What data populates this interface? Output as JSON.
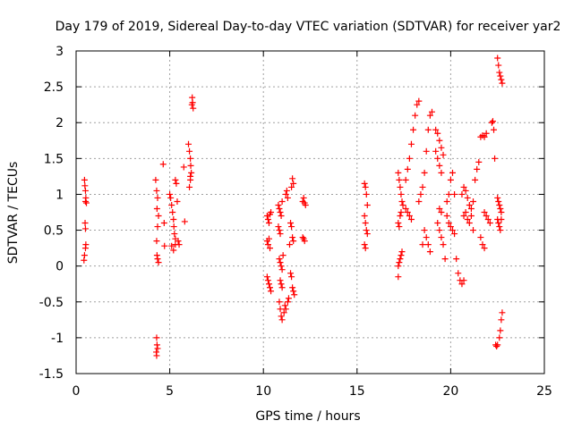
{
  "chart_data": {
    "type": "scatter",
    "title": "Day 179 of 2019, Sidereal Day-to-day VTEC variation (SDTVAR) for receiver yar2",
    "xlabel": "GPS time / hours",
    "ylabel": "SDTVAR / TECUs",
    "xlim": [
      0,
      25
    ],
    "ylim": [
      -1.5,
      3
    ],
    "grid": true,
    "marker": "+",
    "color": "#ff0000",
    "x_ticks": [
      {
        "value": 0,
        "label": "0"
      },
      {
        "value": 5,
        "label": "5"
      },
      {
        "value": 10,
        "label": "10"
      },
      {
        "value": 15,
        "label": "15"
      },
      {
        "value": 20,
        "label": "20"
      },
      {
        "value": 25,
        "label": "25"
      }
    ],
    "y_ticks": [
      {
        "value": -1.5,
        "label": "-1.5"
      },
      {
        "value": -1,
        "label": "-1"
      },
      {
        "value": -0.5,
        "label": "-0.5"
      },
      {
        "value": 0,
        "label": "0"
      },
      {
        "value": 0.5,
        "label": "0.5"
      },
      {
        "value": 1,
        "label": "1"
      },
      {
        "value": 1.5,
        "label": "1.5"
      },
      {
        "value": 2,
        "label": "2"
      },
      {
        "value": 2.5,
        "label": "2.5"
      },
      {
        "value": 3,
        "label": "3"
      }
    ],
    "series": [
      {
        "name": "SDTVAR",
        "points": [
          [
            0.45,
            1.2
          ],
          [
            0.47,
            1.12
          ],
          [
            0.5,
            1.05
          ],
          [
            0.52,
            0.95
          ],
          [
            0.55,
            0.88
          ],
          [
            0.48,
            0.6
          ],
          [
            0.5,
            0.52
          ],
          [
            0.52,
            0.3
          ],
          [
            0.5,
            0.25
          ],
          [
            0.45,
            0.15
          ],
          [
            0.42,
            0.08
          ],
          [
            0.5,
            0.9
          ],
          [
            4.25,
            1.2
          ],
          [
            4.3,
            1.05
          ],
          [
            4.35,
            0.95
          ],
          [
            4.32,
            0.8
          ],
          [
            4.4,
            0.7
          ],
          [
            4.35,
            0.55
          ],
          [
            4.3,
            0.35
          ],
          [
            4.32,
            0.15
          ],
          [
            4.35,
            0.1
          ],
          [
            4.4,
            0.05
          ],
          [
            4.3,
            -1.0
          ],
          [
            4.32,
            -1.1
          ],
          [
            4.35,
            -1.15
          ],
          [
            4.3,
            -1.25
          ],
          [
            4.28,
            -1.2
          ],
          [
            4.65,
            1.42
          ],
          [
            4.7,
            0.6
          ],
          [
            4.72,
            0.28
          ],
          [
            5.0,
            1.0
          ],
          [
            5.05,
            0.95
          ],
          [
            5.1,
            0.85
          ],
          [
            5.15,
            0.75
          ],
          [
            5.2,
            0.65
          ],
          [
            5.22,
            0.55
          ],
          [
            5.25,
            0.45
          ],
          [
            5.3,
            0.38
          ],
          [
            5.1,
            0.28
          ],
          [
            5.2,
            0.22
          ],
          [
            5.3,
            1.2
          ],
          [
            5.35,
            1.15
          ],
          [
            5.4,
            0.9
          ],
          [
            5.45,
            0.35
          ],
          [
            5.5,
            0.3
          ],
          [
            5.3,
            0.3
          ],
          [
            5.75,
            1.38
          ],
          [
            5.8,
            0.62
          ],
          [
            6.0,
            1.7
          ],
          [
            6.05,
            1.6
          ],
          [
            6.1,
            1.5
          ],
          [
            6.12,
            1.4
          ],
          [
            6.15,
            1.3
          ],
          [
            6.1,
            1.2
          ],
          [
            6.2,
            2.35
          ],
          [
            6.22,
            2.28
          ],
          [
            6.25,
            2.2
          ],
          [
            6.18,
            2.25
          ],
          [
            6.05,
            1.1
          ],
          [
            6.1,
            1.25
          ],
          [
            10.2,
            0.7
          ],
          [
            10.25,
            0.65
          ],
          [
            10.3,
            0.6
          ],
          [
            10.35,
            0.72
          ],
          [
            10.4,
            0.75
          ],
          [
            10.2,
            0.35
          ],
          [
            10.25,
            0.3
          ],
          [
            10.3,
            0.38
          ],
          [
            10.35,
            0.25
          ],
          [
            10.2,
            -0.15
          ],
          [
            10.25,
            -0.2
          ],
          [
            10.3,
            -0.25
          ],
          [
            10.35,
            -0.3
          ],
          [
            10.4,
            -0.35
          ],
          [
            10.8,
            0.85
          ],
          [
            10.85,
            0.8
          ],
          [
            10.9,
            0.75
          ],
          [
            10.95,
            0.7
          ],
          [
            11.0,
            0.9
          ],
          [
            10.8,
            0.55
          ],
          [
            10.85,
            0.5
          ],
          [
            10.9,
            0.45
          ],
          [
            10.85,
            0.1
          ],
          [
            10.9,
            0.05
          ],
          [
            10.95,
            0.0
          ],
          [
            11.0,
            -0.05
          ],
          [
            11.05,
            0.15
          ],
          [
            10.9,
            -0.2
          ],
          [
            10.95,
            -0.25
          ],
          [
            11.0,
            -0.3
          ],
          [
            10.85,
            -0.5
          ],
          [
            10.9,
            -0.6
          ],
          [
            10.95,
            -0.7
          ],
          [
            11.0,
            -0.75
          ],
          [
            11.1,
            -0.65
          ],
          [
            11.15,
            -0.55
          ],
          [
            11.2,
            -0.6
          ],
          [
            11.3,
            -0.5
          ],
          [
            11.35,
            -0.45
          ],
          [
            11.2,
            1.0
          ],
          [
            11.25,
            1.05
          ],
          [
            11.3,
            0.95
          ],
          [
            11.5,
            1.1
          ],
          [
            11.55,
            1.22
          ],
          [
            11.6,
            1.15
          ],
          [
            11.45,
            0.6
          ],
          [
            11.5,
            0.55
          ],
          [
            11.55,
            0.4
          ],
          [
            11.6,
            0.35
          ],
          [
            11.45,
            -0.1
          ],
          [
            11.5,
            -0.15
          ],
          [
            11.55,
            -0.3
          ],
          [
            11.6,
            -0.35
          ],
          [
            11.65,
            -0.4
          ],
          [
            11.4,
            0.3
          ],
          [
            12.1,
            0.9
          ],
          [
            12.15,
            0.95
          ],
          [
            12.2,
            0.88
          ],
          [
            12.25,
            0.85
          ],
          [
            12.1,
            0.4
          ],
          [
            12.15,
            0.38
          ],
          [
            12.2,
            0.35
          ],
          [
            15.4,
            1.15
          ],
          [
            15.45,
            1.1
          ],
          [
            15.5,
            1.0
          ],
          [
            15.55,
            0.85
          ],
          [
            15.4,
            0.7
          ],
          [
            15.45,
            0.6
          ],
          [
            15.5,
            0.5
          ],
          [
            15.55,
            0.45
          ],
          [
            15.4,
            0.3
          ],
          [
            15.45,
            0.25
          ],
          [
            17.2,
            1.3
          ],
          [
            17.25,
            1.2
          ],
          [
            17.3,
            1.1
          ],
          [
            17.35,
            1.0
          ],
          [
            17.4,
            0.9
          ],
          [
            17.45,
            0.85
          ],
          [
            17.2,
            0.6
          ],
          [
            17.25,
            0.55
          ],
          [
            17.3,
            0.7
          ],
          [
            17.35,
            0.75
          ],
          [
            17.2,
            0.0
          ],
          [
            17.25,
            0.05
          ],
          [
            17.3,
            0.1
          ],
          [
            17.35,
            0.15
          ],
          [
            17.4,
            0.2
          ],
          [
            17.2,
            -0.15
          ],
          [
            17.6,
            0.8
          ],
          [
            17.7,
            0.75
          ],
          [
            17.8,
            0.7
          ],
          [
            17.9,
            0.65
          ],
          [
            17.6,
            1.2
          ],
          [
            17.7,
            1.35
          ],
          [
            17.8,
            1.5
          ],
          [
            17.9,
            1.7
          ],
          [
            18.0,
            1.9
          ],
          [
            18.1,
            2.1
          ],
          [
            18.2,
            2.25
          ],
          [
            18.3,
            2.3
          ],
          [
            18.3,
            0.9
          ],
          [
            18.4,
            1.0
          ],
          [
            18.5,
            1.1
          ],
          [
            18.6,
            1.3
          ],
          [
            18.7,
            1.6
          ],
          [
            18.8,
            1.9
          ],
          [
            18.9,
            2.1
          ],
          [
            19.0,
            2.15
          ],
          [
            18.6,
            0.5
          ],
          [
            18.7,
            0.4
          ],
          [
            18.8,
            0.3
          ],
          [
            18.9,
            0.2
          ],
          [
            18.5,
            0.3
          ],
          [
            19.2,
            1.9
          ],
          [
            19.3,
            1.85
          ],
          [
            19.4,
            1.75
          ],
          [
            19.5,
            1.65
          ],
          [
            19.6,
            1.55
          ],
          [
            19.2,
            1.6
          ],
          [
            19.3,
            1.5
          ],
          [
            19.4,
            1.4
          ],
          [
            19.5,
            1.3
          ],
          [
            19.3,
            0.6
          ],
          [
            19.4,
            0.5
          ],
          [
            19.5,
            0.4
          ],
          [
            19.6,
            0.3
          ],
          [
            19.7,
            0.1
          ],
          [
            19.4,
            0.8
          ],
          [
            19.5,
            0.75
          ],
          [
            19.8,
            0.9
          ],
          [
            19.9,
            1.0
          ],
          [
            20.0,
            1.2
          ],
          [
            20.1,
            1.3
          ],
          [
            20.2,
            1.0
          ],
          [
            19.8,
            0.7
          ],
          [
            19.9,
            0.6
          ],
          [
            20.0,
            0.55
          ],
          [
            20.1,
            0.5
          ],
          [
            20.2,
            0.45
          ],
          [
            20.3,
            0.1
          ],
          [
            20.4,
            -0.1
          ],
          [
            20.5,
            -0.2
          ],
          [
            20.6,
            -0.25
          ],
          [
            20.7,
            -0.2
          ],
          [
            20.6,
            1.0
          ],
          [
            20.7,
            1.1
          ],
          [
            20.8,
            1.05
          ],
          [
            20.9,
            0.95
          ],
          [
            21.0,
            0.85
          ],
          [
            21.1,
            0.8
          ],
          [
            21.2,
            0.9
          ],
          [
            21.3,
            1.2
          ],
          [
            21.4,
            1.35
          ],
          [
            21.5,
            1.45
          ],
          [
            20.7,
            0.7
          ],
          [
            20.8,
            0.75
          ],
          [
            20.9,
            0.65
          ],
          [
            21.0,
            0.6
          ],
          [
            21.1,
            0.7
          ],
          [
            21.2,
            0.5
          ],
          [
            21.6,
            1.8
          ],
          [
            21.7,
            1.82
          ],
          [
            21.8,
            1.8
          ],
          [
            21.9,
            1.85
          ],
          [
            21.8,
            0.75
          ],
          [
            21.9,
            0.7
          ],
          [
            22.0,
            0.65
          ],
          [
            22.1,
            0.6
          ],
          [
            21.6,
            0.4
          ],
          [
            21.7,
            0.3
          ],
          [
            21.8,
            0.25
          ],
          [
            22.2,
            2.0
          ],
          [
            22.25,
            2.02
          ],
          [
            22.3,
            1.9
          ],
          [
            22.35,
            1.5
          ],
          [
            22.5,
            0.95
          ],
          [
            22.55,
            0.9
          ],
          [
            22.6,
            0.85
          ],
          [
            22.65,
            0.8
          ],
          [
            22.7,
            0.75
          ],
          [
            22.5,
            0.65
          ],
          [
            22.55,
            0.6
          ],
          [
            22.6,
            0.55
          ],
          [
            22.65,
            0.5
          ],
          [
            22.7,
            0.65
          ],
          [
            22.4,
            -1.1
          ],
          [
            22.45,
            -1.12
          ],
          [
            22.5,
            -1.1
          ],
          [
            22.6,
            -1.0
          ],
          [
            22.65,
            -0.9
          ],
          [
            22.7,
            -0.75
          ],
          [
            22.75,
            -0.65
          ],
          [
            22.5,
            2.9
          ],
          [
            22.55,
            2.8
          ],
          [
            22.6,
            2.7
          ],
          [
            22.65,
            2.65
          ],
          [
            22.7,
            2.6
          ],
          [
            22.75,
            2.55
          ]
        ]
      }
    ]
  }
}
